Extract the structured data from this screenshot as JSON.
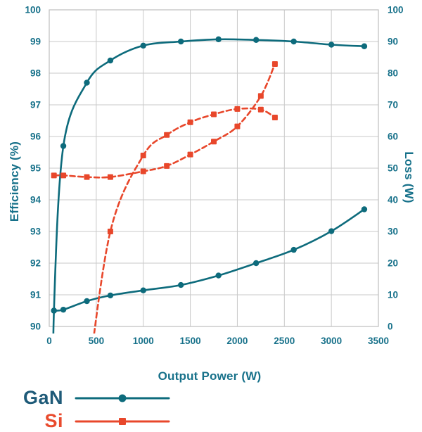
{
  "chart_data": {
    "type": "line",
    "title": "",
    "xlabel": "Output Power (W)",
    "ylabel_left": "Efficiency (%)",
    "ylabel_right": "Loss (W)",
    "x_range": [
      0,
      3500
    ],
    "y_left_range": [
      90,
      100
    ],
    "y_right_range": [
      0,
      100
    ],
    "x_ticks": [
      0,
      500,
      1000,
      1500,
      2000,
      2500,
      3000,
      3500
    ],
    "y_left_ticks": [
      100,
      99,
      98,
      97,
      96,
      95,
      94,
      93,
      92,
      91,
      90
    ],
    "y_right_ticks": [
      100,
      90,
      80,
      70,
      60,
      50,
      40,
      30,
      20,
      10,
      0
    ],
    "grid": true,
    "legend_position": "bottom-left",
    "colors": {
      "gan": "#0d6b7c",
      "si": "#e8472b",
      "grid": "#c9c9c9",
      "axis_text": "#17718a",
      "legend_gan_text": "#1e5a78",
      "legend_si_text": "#e94b2e"
    },
    "series": [
      {
        "name": "GaN efficiency",
        "axis": "left",
        "color": "#0d6b7c",
        "dashed": false,
        "marker": "circle",
        "entry": [
          40,
          86
        ],
        "points": [
          [
            50,
            90.5
          ],
          [
            150,
            95.7
          ],
          [
            400,
            97.7
          ],
          [
            650,
            98.4
          ],
          [
            1000,
            98.87
          ],
          [
            1400,
            99.0
          ],
          [
            1800,
            99.07
          ],
          [
            2200,
            99.05
          ],
          [
            2600,
            99.0
          ],
          [
            3000,
            98.9
          ],
          [
            3350,
            98.85
          ]
        ]
      },
      {
        "name": "GaN loss",
        "axis": "right",
        "color": "#0d6b7c",
        "dashed": false,
        "marker": "circle",
        "entry": null,
        "points": [
          [
            50,
            5.0
          ],
          [
            150,
            5.3
          ],
          [
            400,
            8.0
          ],
          [
            650,
            9.8
          ],
          [
            1000,
            11.4
          ],
          [
            1400,
            13.1
          ],
          [
            1800,
            16.1
          ],
          [
            2200,
            20.0
          ],
          [
            2600,
            24.2
          ],
          [
            3000,
            30.1
          ],
          [
            3350,
            37.0
          ]
        ]
      },
      {
        "name": "Si efficiency",
        "axis": "left",
        "color": "#e8472b",
        "dashed": true,
        "marker": "square",
        "entry": [
          400,
          88
        ],
        "points": [
          [
            650,
            93.0
          ],
          [
            1000,
            95.4
          ],
          [
            1250,
            96.05
          ],
          [
            1500,
            96.45
          ],
          [
            1750,
            96.7
          ],
          [
            2000,
            96.87
          ],
          [
            2250,
            96.85
          ],
          [
            2400,
            96.6
          ]
        ]
      },
      {
        "name": "Si loss",
        "axis": "right",
        "color": "#e8472b",
        "dashed": true,
        "marker": "square",
        "entry": null,
        "points": [
          [
            50,
            47.7
          ],
          [
            150,
            47.7
          ],
          [
            400,
            47.2
          ],
          [
            650,
            47.2
          ],
          [
            1000,
            49.0
          ],
          [
            1250,
            50.7
          ],
          [
            1500,
            54.3
          ],
          [
            1750,
            58.4
          ],
          [
            2000,
            63.2
          ],
          [
            2250,
            72.8
          ],
          [
            2400,
            82.9
          ]
        ]
      }
    ],
    "legend": [
      {
        "label": "GaN",
        "color": "#0d6b7c",
        "marker": "circle"
      },
      {
        "label": "Si",
        "color": "#e8472b",
        "marker": "square"
      }
    ]
  }
}
